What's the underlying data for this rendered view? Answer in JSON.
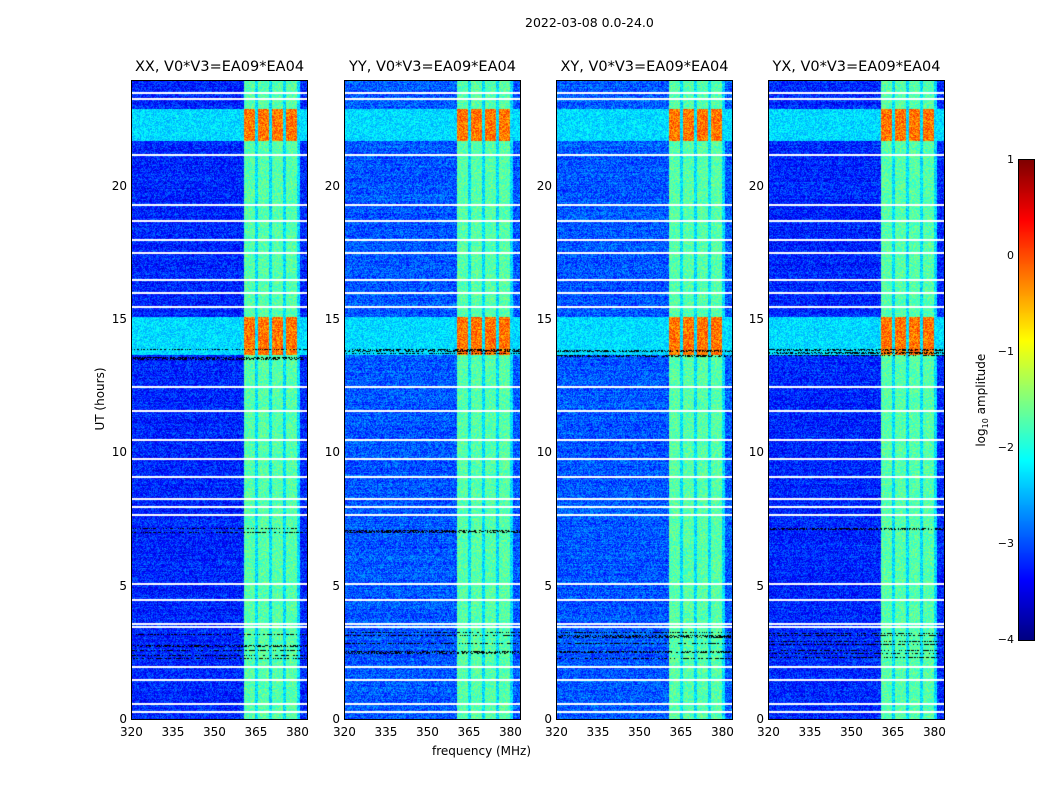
{
  "chart_data": {
    "type": "heatmap",
    "title": "2022-03-08 0.0-24.0",
    "xlabel": "frequency (MHz)",
    "ylabel": "UT (hours)",
    "xlim": [
      320,
      384
    ],
    "ylim": [
      0,
      24
    ],
    "xticks": [
      "320",
      "335",
      "350",
      "365",
      "380"
    ],
    "yticks": [
      "0",
      "5",
      "10",
      "15",
      "20"
    ],
    "panels": [
      {
        "title": "XX, V0*V3=EA09*EA04"
      },
      {
        "title": "YY, V0*V3=EA09*EA04"
      },
      {
        "title": "XY, V0*V3=EA09*EA04"
      },
      {
        "title": "YX, V0*V3=EA09*EA04"
      }
    ],
    "colorbar": {
      "label": "log10 amplitude",
      "label_main": "log",
      "label_sub": "10",
      "label_rest": " amplitude",
      "min": -4,
      "max": 1,
      "ticks": [
        "1",
        "0",
        "−1",
        "−2",
        "−3",
        "−4"
      ],
      "colormap": "jet"
    },
    "background_level": -3.3,
    "rfi_band_MHz": [
      361,
      381
    ],
    "rfi_level": -1.7,
    "strong_rfi_hours": [
      [
        13.7,
        15.1
      ],
      [
        21.7,
        22.9
      ]
    ],
    "strong_rfi_level": -0.2,
    "flagged_hours": [
      0.3,
      0.6,
      1.5,
      2.0,
      3.5,
      3.6,
      4.5,
      5.1,
      7.7,
      8.0,
      8.3,
      9.1,
      9.8,
      10.5,
      11.6,
      12.5,
      15.5,
      16.0,
      16.5,
      17.5,
      18.0,
      18.7,
      19.3,
      21.2,
      23.3,
      23.5
    ]
  }
}
